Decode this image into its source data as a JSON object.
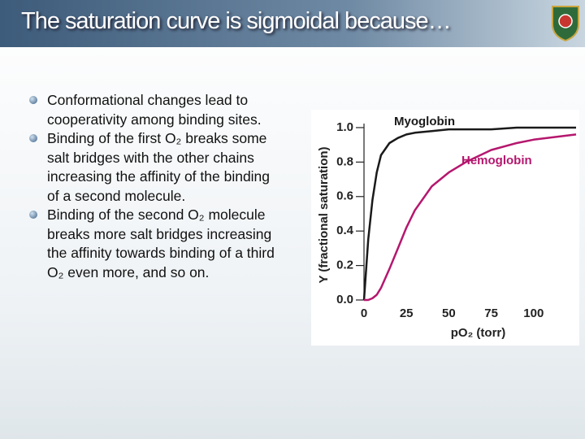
{
  "slide": {
    "title": "The saturation curve is sigmoidal because…",
    "bullets": [
      "Conformational changes lead to cooperativity among binding sites.",
      "Binding of the first O₂ breaks some salt bridges with the other chains increasing the affinity of the binding of a second molecule.",
      "Binding of the second O₂ molecule breaks more salt bridges increasing the affinity towards binding of a third O₂ even more, and so on."
    ]
  },
  "chart_data": {
    "type": "line",
    "x_label": "pO₂ (torr)",
    "y_label": "Y (fractional saturation)",
    "x": [
      0,
      2.5,
      5,
      7.5,
      10,
      15,
      20,
      25,
      30,
      40,
      50,
      60,
      75,
      90,
      100,
      125
    ],
    "series": [
      {
        "name": "Myoglobin",
        "color": "#1a1a1a",
        "values": [
          0,
          0.35,
          0.58,
          0.74,
          0.84,
          0.91,
          0.94,
          0.96,
          0.97,
          0.98,
          0.99,
          0.99,
          0.99,
          1.0,
          1.0,
          1.0
        ]
      },
      {
        "name": "Hemoglobin",
        "color": "#b5176e",
        "values": [
          0,
          0,
          0.01,
          0.03,
          0.07,
          0.18,
          0.3,
          0.42,
          0.52,
          0.66,
          0.74,
          0.8,
          0.87,
          0.91,
          0.93,
          0.96
        ]
      }
    ],
    "xlim": [
      0,
      125
    ],
    "ylim": [
      0,
      1.08
    ],
    "xticks": [
      0,
      25,
      50,
      75,
      100
    ],
    "yticks": [
      {
        "value": 0,
        "label": "0.0"
      },
      0.2,
      0.4,
      0.6,
      0.8,
      {
        "value": 1,
        "label": "1.0"
      }
    ]
  }
}
